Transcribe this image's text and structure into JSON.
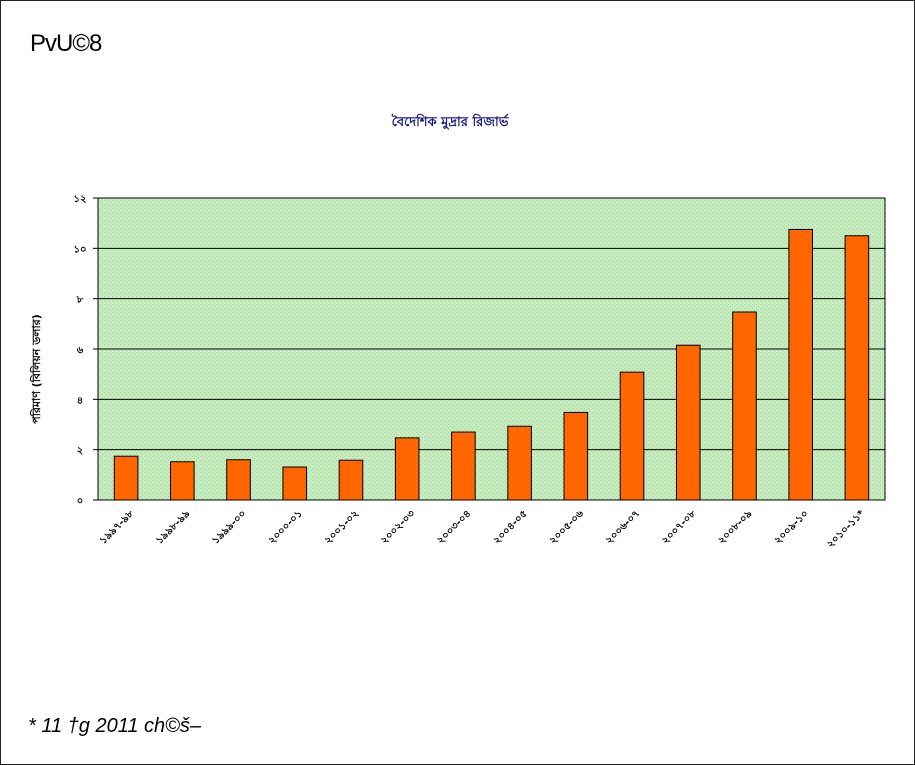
{
  "page": {
    "heading": "PvU©8",
    "footnote": "* 11 †g 2011 ch©š–"
  },
  "chart_data": {
    "type": "bar",
    "title": "বৈদেশিক মুদ্রার রিজার্ভ",
    "xlabel": "",
    "ylabel": "পরিমাণ (বিলিয়ন ডলার)",
    "ylim": [
      0,
      12
    ],
    "yticks": [
      0,
      2,
      4,
      6,
      8,
      10,
      12
    ],
    "ytick_labels": [
      "০",
      "২",
      "৪",
      "৬",
      "৮",
      "১০",
      "১২"
    ],
    "grid": true,
    "legend": "none",
    "categories": [
      "১৯৯৭-৯৮",
      "১৯৯৮-৯৯",
      "১৯৯৯-০০",
      "২০০০-০১",
      "২০০১-০২",
      "২০০২-০৩",
      "২০০৩-০৪",
      "২০০৪-০৫",
      "২০০৫-০৬",
      "২০০৬-০৭",
      "২০০৭-০৮",
      "২০০৮-০৯",
      "২০০৯-১০",
      "২০১০-১১*"
    ],
    "values": [
      1.74,
      1.52,
      1.6,
      1.31,
      1.58,
      2.47,
      2.7,
      2.93,
      3.48,
      5.08,
      6.15,
      7.47,
      10.75,
      10.5
    ],
    "colors": {
      "bar": "#ff6600",
      "plot_bg": "#c6ecc0",
      "gridline": "#000000"
    }
  }
}
